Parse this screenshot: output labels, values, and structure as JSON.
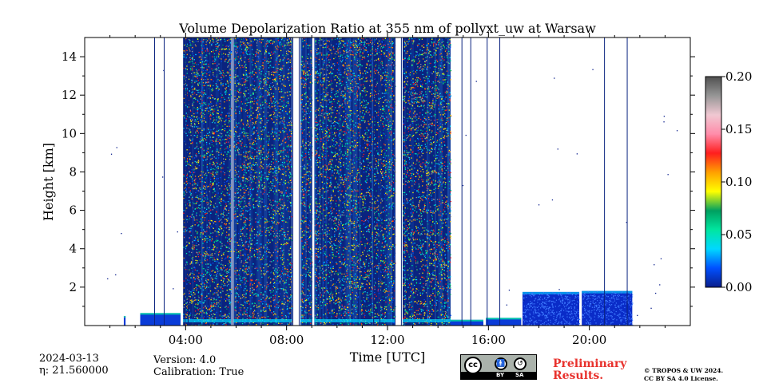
{
  "chart_data": {
    "type": "heatmap",
    "title": "Volume Depolarization Ratio at 355 nm of pollyxt_uw at Warsaw",
    "xlabel": "Time [UTC]",
    "ylabel": "Height [km]",
    "xlim_hours": [
      0,
      24
    ],
    "ylim_km": [
      0,
      15
    ],
    "x_ticks": [
      {
        "hour": 4,
        "label": "04:00"
      },
      {
        "hour": 8,
        "label": "08:00"
      },
      {
        "hour": 12,
        "label": "12:00"
      },
      {
        "hour": 16,
        "label": "16:00"
      },
      {
        "hour": 20,
        "label": "20:00"
      }
    ],
    "y_ticks": [
      {
        "km": 2,
        "label": "2"
      },
      {
        "km": 4,
        "label": "4"
      },
      {
        "km": 6,
        "label": "6"
      },
      {
        "km": 8,
        "label": "8"
      },
      {
        "km": 10,
        "label": "10"
      },
      {
        "km": 12,
        "label": "12"
      },
      {
        "km": 14,
        "label": "14"
      }
    ],
    "colorbar": {
      "min": 0.0,
      "max": 0.2,
      "ticks": [
        {
          "value": 0.0,
          "label": "0.00"
        },
        {
          "value": 0.05,
          "label": "0.05"
        },
        {
          "value": 0.1,
          "label": "0.10"
        },
        {
          "value": 0.15,
          "label": "0.15"
        },
        {
          "value": 0.2,
          "label": "0.20"
        }
      ],
      "colors": [
        "#0a1e8c",
        "#0050ff",
        "#00d8ff",
        "#00e6a0",
        "#00a060",
        "#ffff00",
        "#ffa000",
        "#ff1e1e",
        "#ff8caa",
        "#f0c8d2",
        "#969696",
        "#505050"
      ]
    },
    "data_regions": [
      {
        "start": 1.55,
        "end": 1.62,
        "top_km": 0.5,
        "level": "low"
      },
      {
        "start": 2.2,
        "end": 3.8,
        "top_km": 0.65,
        "level": "low"
      },
      {
        "start": 3.9,
        "end": 4.3,
        "top_km": 15,
        "level": "high"
      },
      {
        "start": 4.3,
        "end": 5.8,
        "top_km": 15,
        "level": "high"
      },
      {
        "start": 5.9,
        "end": 8.2,
        "top_km": 15,
        "level": "high"
      },
      {
        "start": 8.55,
        "end": 9.0,
        "top_km": 15,
        "level": "high"
      },
      {
        "start": 9.1,
        "end": 12.0,
        "top_km": 15,
        "level": "high"
      },
      {
        "start": 12.0,
        "end": 12.3,
        "top_km": 15,
        "level": "high"
      },
      {
        "start": 12.6,
        "end": 14.5,
        "top_km": 15,
        "level": "high"
      },
      {
        "start": 14.5,
        "end": 15.8,
        "top_km": 0.3,
        "level": "low"
      },
      {
        "start": 15.9,
        "end": 17.3,
        "top_km": 0.4,
        "level": "low"
      },
      {
        "start": 17.35,
        "end": 19.6,
        "top_km": 1.75,
        "level": "cloud"
      },
      {
        "start": 19.7,
        "end": 21.7,
        "top_km": 1.8,
        "level": "cloud"
      }
    ],
    "profile_lines_hours": [
      2.77,
      3.15,
      3.98,
      4.1,
      5.85,
      8.25,
      8.5,
      9.0,
      11.45,
      11.7,
      12.3,
      12.55,
      14.95,
      15.3,
      15.95,
      16.45,
      20.6,
      21.5
    ]
  },
  "footer": {
    "date": "2024-03-13",
    "eta": "η: 21.560000",
    "version": "Version: 4.0",
    "calibration": "Calibration: True",
    "cc_letters": "cc",
    "cc_by": "BY",
    "cc_sa": "SA",
    "preliminary_line1": "Preliminary",
    "preliminary_line2": "Results.",
    "copyright_line1": "© TROPOS & UW 2024.",
    "copyright_line2": "CC BY SA 4.0 License."
  }
}
